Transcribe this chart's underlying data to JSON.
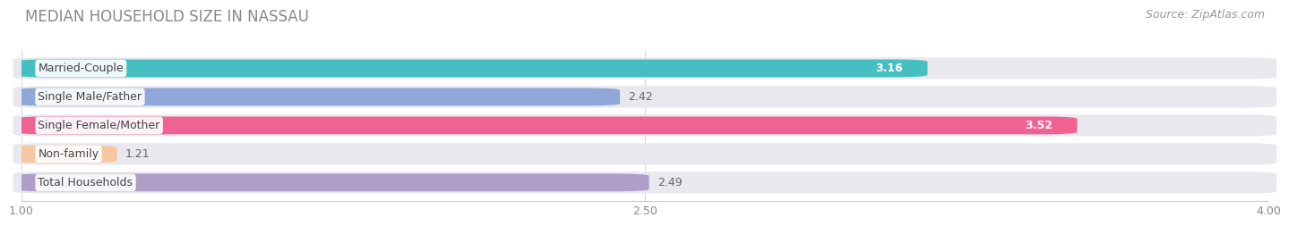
{
  "title": "MEDIAN HOUSEHOLD SIZE IN NASSAU",
  "source": "Source: ZipAtlas.com",
  "categories": [
    "Married-Couple",
    "Single Male/Father",
    "Single Female/Mother",
    "Non-family",
    "Total Households"
  ],
  "values": [
    3.16,
    2.42,
    3.52,
    1.21,
    2.49
  ],
  "bar_colors": [
    "#45bfbf",
    "#8fa8d8",
    "#f06292",
    "#f5c8a0",
    "#b09dc8"
  ],
  "value_inside": [
    true,
    false,
    true,
    false,
    false
  ],
  "value_label_colors_inside": [
    "white",
    "black",
    "white",
    "black",
    "black"
  ],
  "xmin": 1.0,
  "xmax": 4.0,
  "xticks": [
    1.0,
    2.5,
    4.0
  ],
  "background_color": "#f5f5f8",
  "bar_bg_color": "#e8e8ee",
  "title_fontsize": 12,
  "source_fontsize": 9,
  "label_fontsize": 9,
  "value_fontsize": 9
}
